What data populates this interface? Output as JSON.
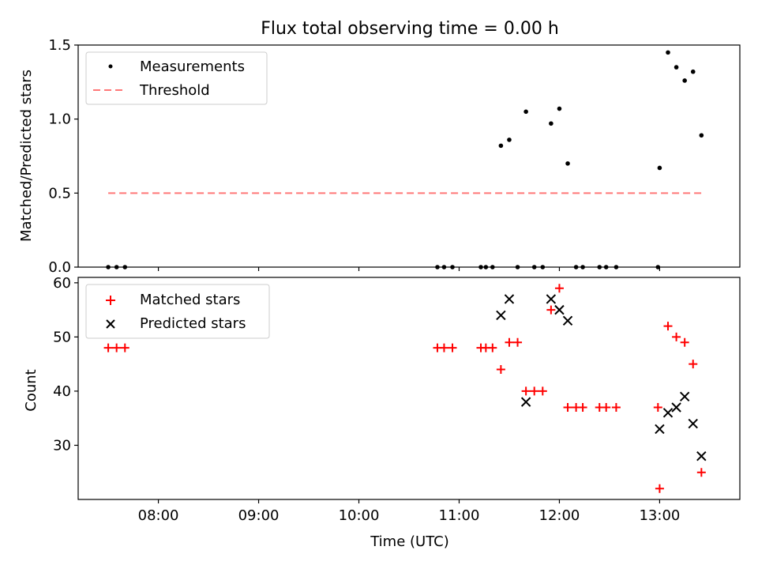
{
  "title": "Flux total observing time = 0.00 h",
  "chart_data": [
    {
      "type": "scatter",
      "ylabel": "Matched/Predicted stars",
      "xlabel": "",
      "xlim": [
        "07:12",
        "13:48"
      ],
      "ylim": [
        0,
        1.5
      ],
      "y_ticks": [
        0.0,
        0.5,
        1.0,
        1.5
      ],
      "y_tick_labels": [
        "0.0",
        "0.5",
        "1.0",
        "1.5"
      ],
      "x_ticks": [
        "08:00",
        "09:00",
        "10:00",
        "11:00",
        "12:00",
        "13:00"
      ],
      "x_tick_labels_visible": false,
      "legend_position": "upper left",
      "grid": false,
      "series": [
        {
          "name": "Measurements",
          "marker": "dot",
          "color": "#000000",
          "points": [
            [
              "07:30",
              0
            ],
            [
              "07:35",
              0
            ],
            [
              "07:40",
              0
            ],
            [
              "10:47",
              0
            ],
            [
              "10:51",
              0
            ],
            [
              "10:56",
              0
            ],
            [
              "11:13",
              0
            ],
            [
              "11:16",
              0
            ],
            [
              "11:20",
              0
            ],
            [
              "11:25",
              0.82
            ],
            [
              "11:30",
              0.86
            ],
            [
              "11:35",
              0
            ],
            [
              "11:40",
              1.05
            ],
            [
              "11:45",
              0
            ],
            [
              "11:50",
              0
            ],
            [
              "11:55",
              0.97
            ],
            [
              "12:00",
              1.07
            ],
            [
              "12:05",
              0.7
            ],
            [
              "12:10",
              0
            ],
            [
              "12:14",
              0
            ],
            [
              "12:24",
              0
            ],
            [
              "12:28",
              0
            ],
            [
              "12:34",
              0
            ],
            [
              "12:59",
              0
            ],
            [
              "13:00",
              0.67
            ],
            [
              "13:05",
              1.45
            ],
            [
              "13:10",
              1.35
            ],
            [
              "13:15",
              1.26
            ],
            [
              "13:20",
              1.32
            ],
            [
              "13:25",
              0.89
            ]
          ]
        },
        {
          "name": "Threshold",
          "style": "dashed",
          "color": "#ff7777",
          "points": [
            [
              "07:30",
              0.5
            ],
            [
              "13:25",
              0.5
            ]
          ]
        }
      ]
    },
    {
      "type": "scatter",
      "ylabel": "Count",
      "xlabel": "Time (UTC)",
      "xlim": [
        "07:12",
        "13:48"
      ],
      "ylim": [
        20,
        61
      ],
      "y_ticks": [
        30,
        40,
        50,
        60
      ],
      "y_tick_labels": [
        "30",
        "40",
        "50",
        "60"
      ],
      "x_ticks": [
        "08:00",
        "09:00",
        "10:00",
        "11:00",
        "12:00",
        "13:00"
      ],
      "x_tick_labels": [
        "08:00",
        "09:00",
        "10:00",
        "11:00",
        "12:00",
        "13:00"
      ],
      "legend_position": "upper left",
      "grid": false,
      "series": [
        {
          "name": "Matched stars",
          "marker": "plus",
          "color": "#ff0000",
          "points": [
            [
              "07:30",
              48
            ],
            [
              "07:35",
              48
            ],
            [
              "07:40",
              48
            ],
            [
              "10:47",
              48
            ],
            [
              "10:51",
              48
            ],
            [
              "10:56",
              48
            ],
            [
              "11:13",
              48
            ],
            [
              "11:16",
              48
            ],
            [
              "11:20",
              48
            ],
            [
              "11:25",
              44
            ],
            [
              "11:30",
              49
            ],
            [
              "11:35",
              49
            ],
            [
              "11:40",
              40
            ],
            [
              "11:45",
              40
            ],
            [
              "11:50",
              40
            ],
            [
              "11:55",
              55
            ],
            [
              "12:00",
              59
            ],
            [
              "12:05",
              37
            ],
            [
              "12:10",
              37
            ],
            [
              "12:14",
              37
            ],
            [
              "12:24",
              37
            ],
            [
              "12:28",
              37
            ],
            [
              "12:34",
              37
            ],
            [
              "12:59",
              37
            ],
            [
              "13:00",
              22
            ],
            [
              "13:05",
              52
            ],
            [
              "13:10",
              50
            ],
            [
              "13:15",
              49
            ],
            [
              "13:20",
              45
            ],
            [
              "13:25",
              25
            ]
          ]
        },
        {
          "name": "Predicted stars",
          "marker": "x",
          "color": "#000000",
          "points": [
            [
              "11:25",
              54
            ],
            [
              "11:30",
              57
            ],
            [
              "11:40",
              38
            ],
            [
              "11:55",
              57
            ],
            [
              "12:00",
              55
            ],
            [
              "12:05",
              53
            ],
            [
              "13:00",
              33
            ],
            [
              "13:05",
              36
            ],
            [
              "13:10",
              37
            ],
            [
              "13:15",
              39
            ],
            [
              "13:20",
              34
            ],
            [
              "13:25",
              28
            ]
          ]
        }
      ]
    }
  ]
}
